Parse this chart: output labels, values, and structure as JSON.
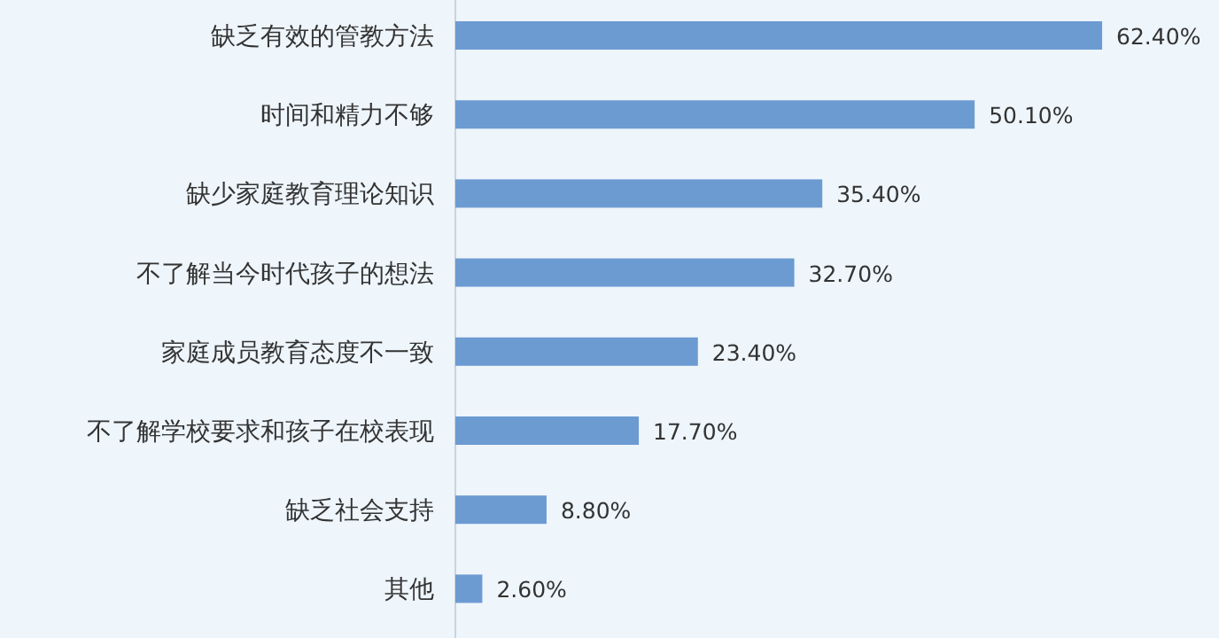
{
  "chart_data": {
    "type": "bar",
    "orientation": "horizontal",
    "categories": [
      "缺乏有效的管教方法",
      "时间和精力不够",
      "缺少家庭教育理论知识",
      "不了解当今时代孩子的想法",
      "家庭成员教育态度不一致",
      "不了解学校要求和孩子在校表现",
      "缺乏社会支持",
      "其他"
    ],
    "values": [
      62.4,
      50.1,
      35.4,
      32.7,
      23.4,
      17.7,
      8.8,
      2.6
    ],
    "value_labels": [
      "62.40%",
      "50.10%",
      "35.40%",
      "32.70%",
      "23.40%",
      "17.70%",
      "8.80%",
      "2.60%"
    ],
    "color": "#6c9bd2"
  }
}
